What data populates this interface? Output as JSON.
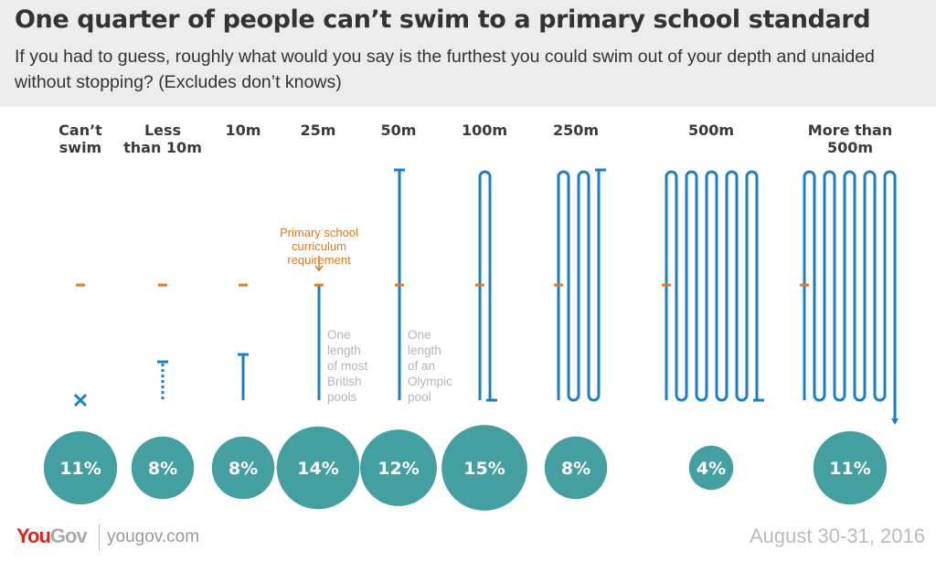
{
  "header": {
    "title": "One quarter of people can’t swim to a primary school standard",
    "subtitle": "If you had to guess, roughly what would you say is the furthest you could swim out of your depth and unaided without stopping? (Excludes don’t knows)"
  },
  "chart_data": {
    "type": "bubble",
    "categories": [
      [
        "Can’t",
        "swim"
      ],
      [
        "Less",
        "than 10m"
      ],
      [
        "10m"
      ],
      [
        "25m"
      ],
      [
        "50m"
      ],
      [
        "100m"
      ],
      [
        "250m"
      ],
      [
        "500m"
      ],
      [
        "More than",
        "500m"
      ]
    ],
    "values": [
      11,
      8,
      8,
      14,
      12,
      15,
      8,
      4,
      11
    ],
    "value_labels": [
      "11%",
      "8%",
      "8%",
      "14%",
      "12%",
      "15%",
      "8%",
      "4%",
      "11%"
    ],
    "annotations": {
      "requirement": [
        "Primary school",
        "curriculum",
        "requirement"
      ],
      "pool_25m": [
        "One",
        "length",
        "of most",
        "British",
        "pools"
      ],
      "pool_50m": [
        "One",
        "length",
        "of an",
        "Olympic",
        "pool"
      ]
    },
    "colors": {
      "bubble": "#44a0a0",
      "swim_line": "#1a7fc4",
      "requirement": "#e07b22"
    }
  },
  "footer": {
    "logo_you": "You",
    "logo_gov": "Gov",
    "url": "yougov.com",
    "date": "August 30-31, 2016"
  }
}
